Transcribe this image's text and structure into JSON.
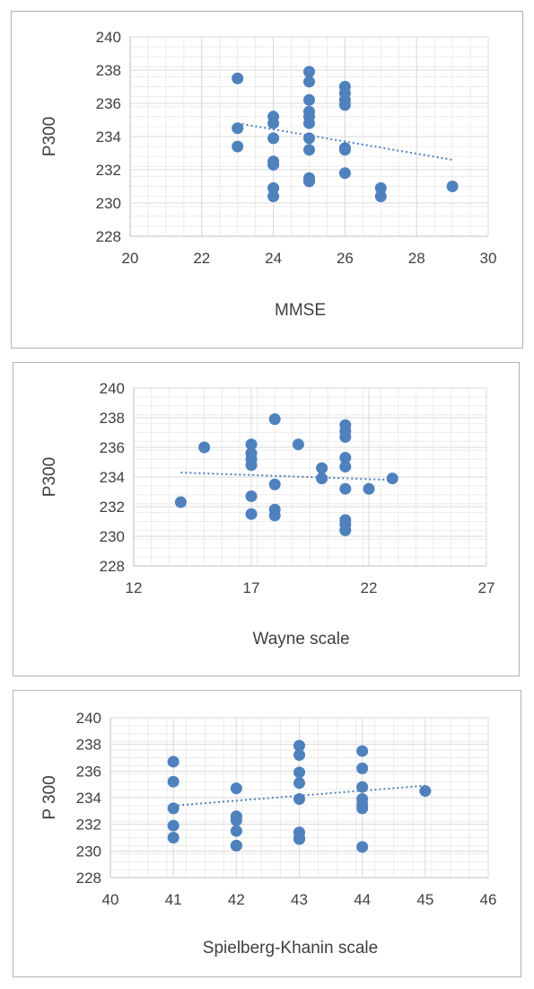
{
  "colors": {
    "marker": "#4f81bd",
    "trendline": "#4f81bd",
    "grid": "#d9d9d9",
    "text": "#404040"
  },
  "chart_data": [
    {
      "type": "scatter",
      "xlabel": "MMSE",
      "ylabel": "P300",
      "xlim": [
        20,
        30
      ],
      "ylim": [
        228,
        240
      ],
      "xticks": [
        "20",
        "22",
        "24",
        "26",
        "28",
        "30"
      ],
      "yticks": [
        "228",
        "230",
        "232",
        "234",
        "236",
        "238",
        "240"
      ],
      "grid": true,
      "trendline": {
        "style": "dotted",
        "from": [
          23,
          234.8
        ],
        "to": [
          29,
          232.6
        ]
      },
      "series": [
        {
          "x": [
            23,
            23,
            23,
            24,
            24,
            24,
            24,
            24,
            24,
            24,
            25,
            25,
            25,
            25,
            25,
            25,
            25,
            25,
            25,
            25,
            25,
            26,
            26,
            26,
            26,
            26,
            26,
            26,
            26,
            27,
            27,
            29
          ],
          "y": [
            237.5,
            234.5,
            233.4,
            235.2,
            234.8,
            233.9,
            232.5,
            232.3,
            230.9,
            230.4,
            237.9,
            237.3,
            236.2,
            235.5,
            235.2,
            234.8,
            233.9,
            233.2,
            231.5,
            231.3,
            231.4,
            237.0,
            236.6,
            236.2,
            235.9,
            233.3,
            233.2,
            231.8,
            233.3,
            230.9,
            230.4,
            231.0
          ]
        }
      ]
    },
    {
      "type": "scatter",
      "xlabel": "Wayne scale",
      "ylabel": "P300",
      "xlim": [
        12,
        27
      ],
      "ylim": [
        228,
        240
      ],
      "xticks": [
        "12",
        "17",
        "22",
        "27"
      ],
      "yticks": [
        "228",
        "230",
        "232",
        "234",
        "236",
        "238",
        "240"
      ],
      "grid": true,
      "trendline": {
        "style": "dotted",
        "from": [
          14,
          234.3
        ],
        "to": [
          23,
          233.8
        ]
      },
      "series": [
        {
          "x": [
            14,
            15,
            17,
            17,
            17,
            17,
            17,
            17,
            18,
            18,
            18,
            18,
            19,
            20,
            20,
            21,
            21,
            21,
            21,
            21,
            21,
            21,
            21,
            21,
            22,
            23
          ],
          "y": [
            232.3,
            236.0,
            236.2,
            235.6,
            235.2,
            234.8,
            232.7,
            231.5,
            237.9,
            233.5,
            231.8,
            231.4,
            236.2,
            234.6,
            233.9,
            237.5,
            237.1,
            236.7,
            235.3,
            234.7,
            233.2,
            231.1,
            230.8,
            230.4,
            233.2,
            233.9
          ]
        }
      ]
    },
    {
      "type": "scatter",
      "xlabel": "Spielberg-Khanin scale",
      "ylabel": "P 300",
      "xlim": [
        40,
        46
      ],
      "ylim": [
        228,
        240
      ],
      "xticks": [
        "40",
        "41",
        "42",
        "43",
        "44",
        "45",
        "46"
      ],
      "yticks": [
        "228",
        "230",
        "232",
        "234",
        "236",
        "238",
        "240"
      ],
      "grid": true,
      "trendline": {
        "style": "dotted",
        "from": [
          41,
          233.4
        ],
        "to": [
          45,
          234.9
        ]
      },
      "series": [
        {
          "x": [
            41,
            41,
            41,
            41,
            41,
            42,
            42,
            42,
            42,
            42,
            42,
            43,
            43,
            43,
            43,
            43,
            43,
            43,
            43,
            43,
            44,
            44,
            44,
            44,
            44,
            44,
            44,
            45
          ],
          "y": [
            236.7,
            235.2,
            233.2,
            231.9,
            231.0,
            234.7,
            232.6,
            232.3,
            231.5,
            230.4,
            230.4,
            237.9,
            237.2,
            235.9,
            235.1,
            233.9,
            231.4,
            230.9,
            231.0,
            230.9,
            237.5,
            236.2,
            234.8,
            233.9,
            233.5,
            233.2,
            230.3,
            234.5
          ]
        }
      ]
    }
  ]
}
